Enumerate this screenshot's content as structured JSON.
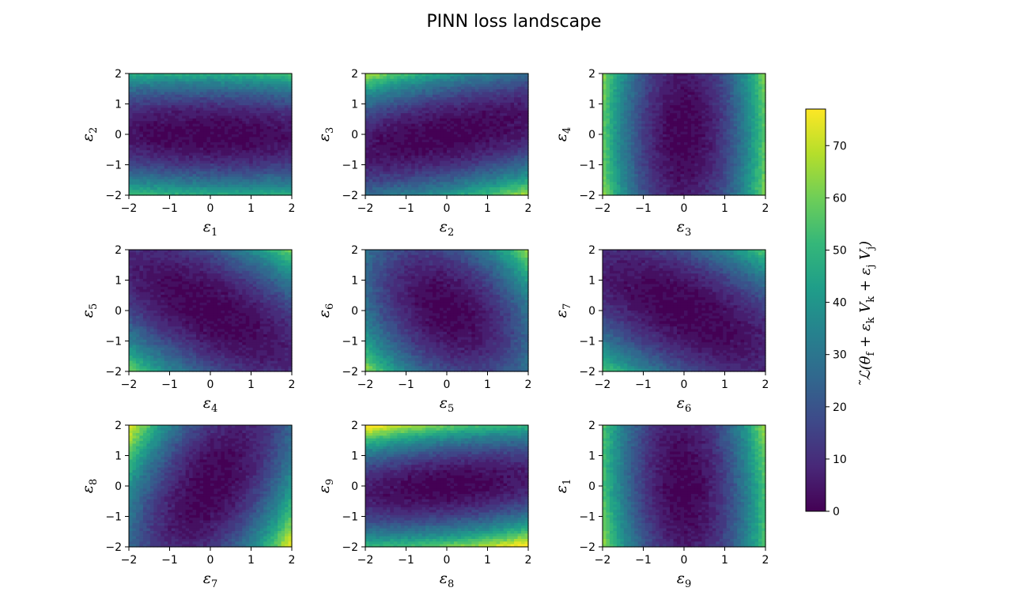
{
  "chart_data": {
    "type": "heatmap",
    "title": "PINN loss landscape",
    "layout": {
      "rows": 3,
      "cols": 3
    },
    "axis_range": [
      -2,
      2
    ],
    "ticks": [
      -2,
      -1,
      0,
      1,
      2
    ],
    "tick_labels": [
      "−2",
      "−1",
      "0",
      "1",
      "2"
    ],
    "colormap": "viridis",
    "colormap_stops": [
      "#440154",
      "#482878",
      "#3e4989",
      "#31688e",
      "#26828e",
      "#1f9e89",
      "#35b779",
      "#6ece58",
      "#b5de2b",
      "#fde725"
    ],
    "panels": [
      {
        "xlabel": "ε",
        "xsub": "1",
        "ylabel": "ε",
        "ysub": "2",
        "a": 0.95,
        "b": 12.0,
        "c": 0.7
      },
      {
        "xlabel": "ε",
        "xsub": "2",
        "ylabel": "ε",
        "ysub": "3",
        "a": 1.6,
        "b": 10.5,
        "c": -5.0
      },
      {
        "xlabel": "ε",
        "xsub": "3",
        "ylabel": "ε",
        "ysub": "4",
        "a": 14.5,
        "b": 1.5,
        "c": 0.0
      },
      {
        "xlabel": "ε",
        "xsub": "4",
        "ylabel": "ε",
        "ysub": "5",
        "a": 4.0,
        "b": 5.0,
        "c": 6.5
      },
      {
        "xlabel": "ε",
        "xsub": "5",
        "ylabel": "ε",
        "ysub": "6",
        "a": 7.5,
        "b": 4.5,
        "c": 4.5
      },
      {
        "xlabel": "ε",
        "xsub": "6",
        "ylabel": "ε",
        "ysub": "7",
        "a": 3.5,
        "b": 5.0,
        "c": 6.0
      },
      {
        "xlabel": "ε",
        "xsub": "7",
        "ylabel": "ε",
        "ysub": "8",
        "a": 10.0,
        "b": 3.0,
        "c": -6.5
      },
      {
        "xlabel": "ε",
        "xsub": "8",
        "ylabel": "ε",
        "ysub": "9",
        "a": 1.8,
        "b": 15.0,
        "c": -4.0
      },
      {
        "xlabel": "ε",
        "xsub": "9",
        "ylabel": "ε",
        "ysub": "1",
        "a": 14.0,
        "b": 1.5,
        "c": 1.2
      }
    ],
    "colorbar": {
      "range": [
        0,
        77
      ],
      "ticks": [
        0,
        10,
        20,
        30,
        40,
        50,
        60,
        70
      ],
      "label": "˜ℒ(θ_f + ε_k V_k + ε_j V_j)"
    }
  }
}
